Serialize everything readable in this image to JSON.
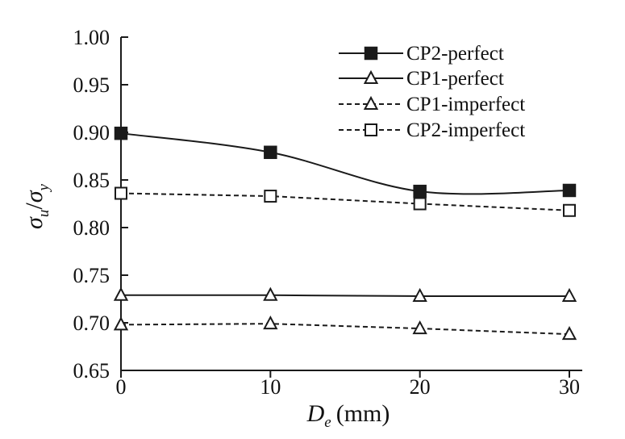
{
  "chart_data": {
    "type": "line",
    "title": "",
    "xlabel": {
      "main": "D",
      "sub": "e",
      "unit": "(mm)"
    },
    "ylabel": {
      "num": "σ",
      "num_sub": "u",
      "slash": "/",
      "den": "σ",
      "den_sub": "y"
    },
    "x": [
      0,
      10,
      20,
      30
    ],
    "xlim": [
      0,
      30
    ],
    "ylim": [
      0.65,
      1.0
    ],
    "xticks": [
      "0",
      "10",
      "20",
      "30"
    ],
    "yticks": [
      "0.65",
      "0.70",
      "0.75",
      "0.80",
      "0.85",
      "0.90",
      "0.95",
      "1.00"
    ],
    "legend_position": "top-right",
    "series": [
      {
        "name": "CP2-perfect",
        "values": [
          0.899,
          0.879,
          0.838,
          0.839
        ],
        "line": "solid",
        "marker": "square-filled",
        "smooth": true
      },
      {
        "name": "CP1-perfect",
        "values": [
          0.729,
          0.729,
          0.728,
          0.728
        ],
        "line": "solid",
        "marker": "triangle-open",
        "smooth": false
      },
      {
        "name": "CP1-imperfect",
        "values": [
          0.698,
          0.699,
          0.694,
          0.688
        ],
        "line": "dashed",
        "marker": "triangle-open",
        "smooth": false
      },
      {
        "name": "CP2-imperfect",
        "values": [
          0.836,
          0.833,
          0.825,
          0.818
        ],
        "line": "dashed",
        "marker": "square-open",
        "smooth": false
      }
    ],
    "colors": {
      "line": "#1a1a1a",
      "background": "#ffffff"
    }
  }
}
